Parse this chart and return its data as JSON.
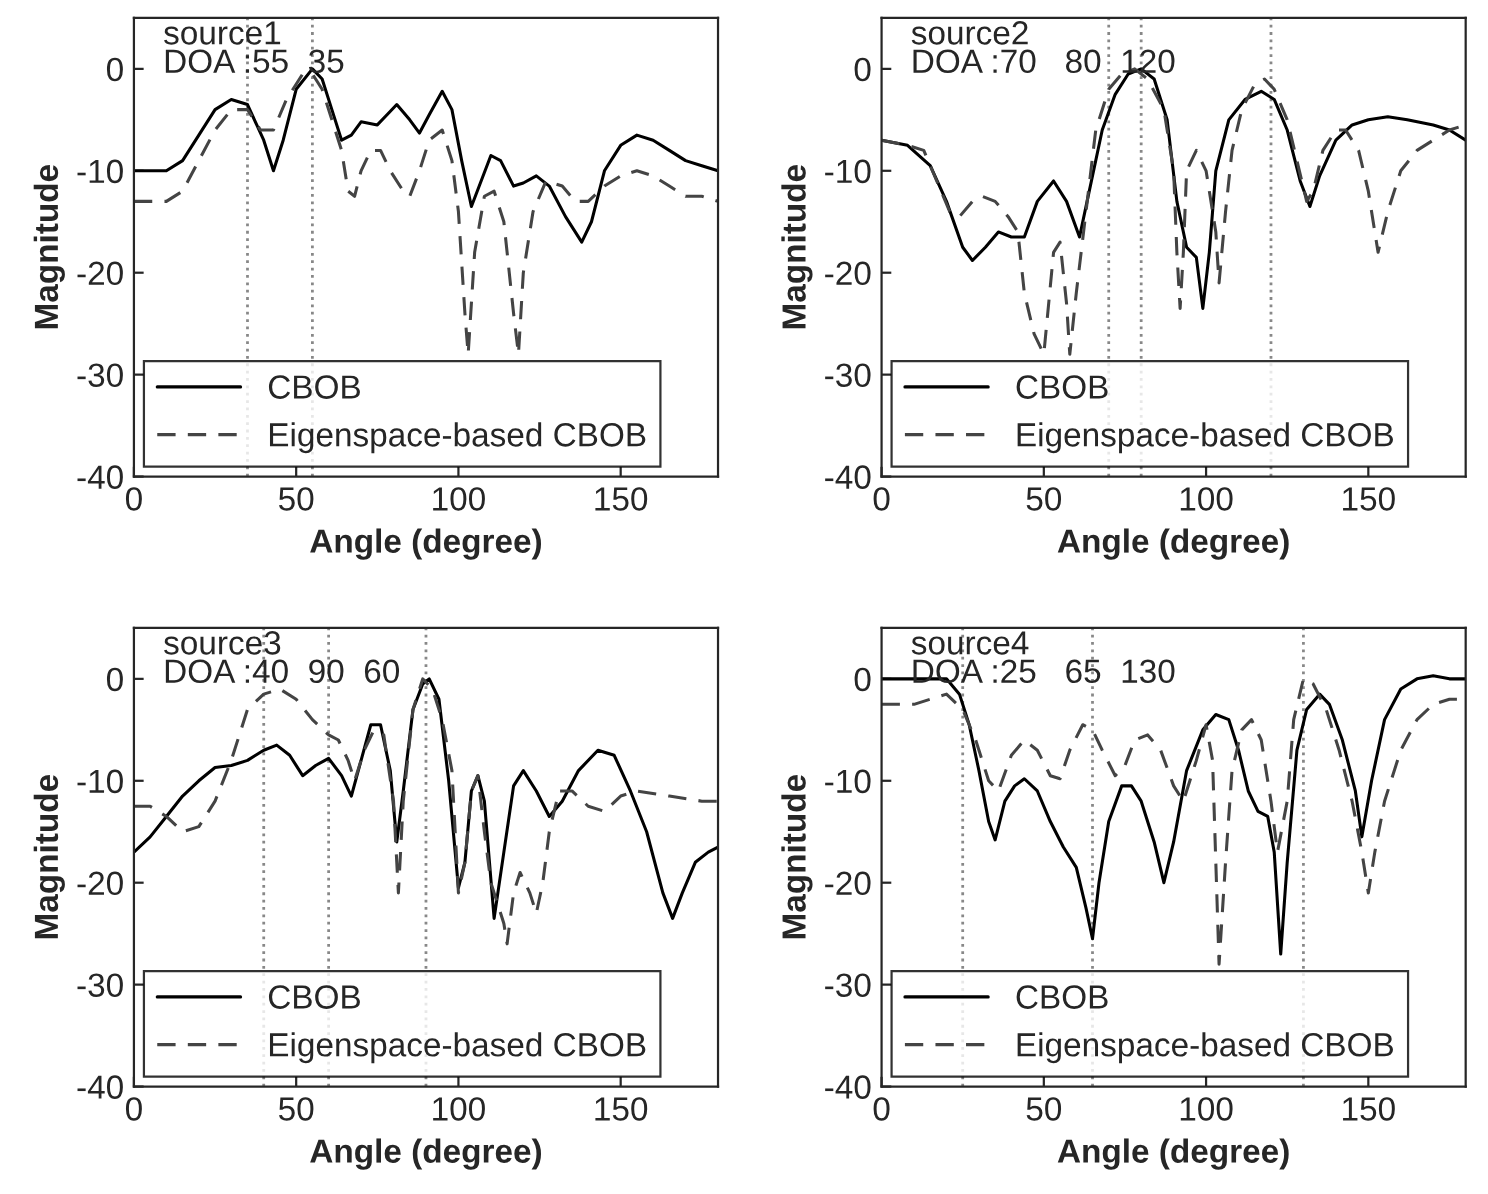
{
  "chart_data": [
    {
      "type": "line",
      "xlabel": "Angle (degree)",
      "ylabel": "Magnitude",
      "annotations": [
        "source1",
        "DOA :55  35"
      ],
      "xlim": [
        0,
        180
      ],
      "ylim": [
        -40,
        5
      ],
      "xticks": [
        0,
        50,
        100,
        150
      ],
      "yticks": [
        -40,
        -30,
        -20,
        -10,
        0
      ],
      "legend": "bottom left",
      "grid": false,
      "ref_lines": [
        {
          "axis": "x",
          "value": 35,
          "color": "#888888",
          "line_style": "dotted"
        },
        {
          "axis": "x",
          "value": 55,
          "color": "#888888",
          "line_style": "dotted"
        }
      ],
      "series": [
        {
          "name": "CBOB",
          "color": "#000000",
          "line_style": "solid",
          "x": [
            0,
            10,
            15,
            20,
            25,
            30,
            35,
            40,
            43,
            46,
            50,
            55,
            58,
            61,
            64,
            67,
            70,
            75,
            78,
            81,
            85,
            88,
            91,
            95,
            98,
            101,
            104,
            107,
            110,
            113,
            117,
            120,
            124,
            128,
            133,
            138,
            141,
            145,
            150,
            155,
            160,
            165,
            170,
            175,
            180
          ],
          "values": [
            -10,
            -10,
            -9,
            -6.5,
            -4,
            -3,
            -3.5,
            -7,
            -10,
            -7,
            -2,
            0,
            -1,
            -4,
            -7,
            -6.5,
            -5.2,
            -5.5,
            -4.5,
            -3.5,
            -5,
            -6.3,
            -4.5,
            -2.2,
            -4,
            -9,
            -13.5,
            -11,
            -8.5,
            -9,
            -11.5,
            -11.2,
            -10.5,
            -11.5,
            -14.5,
            -17,
            -15,
            -10,
            -7.5,
            -6.5,
            -7,
            -8,
            -9,
            -9.5,
            -10
          ]
        },
        {
          "name": "Eigenspace-based CBOB",
          "color": "#444444",
          "line_style": "dashed",
          "x": [
            0,
            10,
            15,
            20,
            25,
            30,
            35,
            39,
            43,
            47,
            52,
            55,
            58,
            61,
            64,
            66,
            68,
            70,
            73,
            76,
            79,
            83,
            85,
            88,
            91,
            95,
            98,
            100,
            102,
            103,
            105,
            108,
            111,
            114,
            117,
            118.5,
            120,
            123,
            127,
            132,
            136,
            140,
            145,
            150,
            155,
            160,
            165,
            170,
            175,
            180
          ],
          "values": [
            -13,
            -13,
            -12,
            -9,
            -6,
            -4,
            -4,
            -6,
            -6,
            -3,
            -0.5,
            -0.5,
            -2,
            -5,
            -8,
            -12,
            -12.5,
            -10,
            -8,
            -8,
            -10,
            -12,
            -12.5,
            -10,
            -7,
            -6,
            -9,
            -14,
            -24,
            -28,
            -18,
            -12.5,
            -12,
            -15,
            -24,
            -28,
            -20,
            -14,
            -11,
            -11.5,
            -13,
            -13,
            -11.5,
            -10.5,
            -10,
            -10.5,
            -11.5,
            -12.5,
            -12.5,
            -13
          ]
        }
      ]
    },
    {
      "type": "line",
      "xlabel": "Angle (degree)",
      "ylabel": "Magnitude",
      "annotations": [
        "source2",
        "DOA :70   80  120"
      ],
      "xlim": [
        0,
        180
      ],
      "ylim": [
        -40,
        5
      ],
      "xticks": [
        0,
        50,
        100,
        150
      ],
      "yticks": [
        -40,
        -30,
        -20,
        -10,
        0
      ],
      "legend": "bottom left",
      "grid": false,
      "ref_lines": [
        {
          "axis": "x",
          "value": 70,
          "color": "#888888",
          "line_style": "dotted"
        },
        {
          "axis": "x",
          "value": 80,
          "color": "#888888",
          "line_style": "dotted"
        },
        {
          "axis": "x",
          "value": 120,
          "color": "#888888",
          "line_style": "dotted"
        }
      ],
      "series": [
        {
          "name": "CBOB",
          "color": "#000000",
          "line_style": "solid",
          "x": [
            0,
            8,
            15,
            20,
            25,
            28,
            32,
            36,
            40,
            44,
            48,
            53,
            57,
            61,
            64,
            68,
            72,
            76,
            80,
            84,
            88,
            91,
            94,
            97,
            99,
            101,
            103,
            107,
            112,
            117,
            121,
            125,
            129,
            132,
            135,
            140,
            145,
            150,
            156,
            162,
            170,
            175,
            180
          ],
          "values": [
            -7,
            -7.5,
            -9.5,
            -13,
            -17.5,
            -18.8,
            -17.5,
            -16,
            -16.5,
            -16.5,
            -13,
            -11,
            -13,
            -16.5,
            -12,
            -6,
            -2.5,
            -0.5,
            0,
            -1,
            -5,
            -13,
            -17.5,
            -18.5,
            -23.5,
            -18,
            -10,
            -5,
            -3,
            -2.2,
            -3,
            -6,
            -11,
            -13.5,
            -10.5,
            -7,
            -5.5,
            -5,
            -4.7,
            -5,
            -5.5,
            -6,
            -7
          ]
        },
        {
          "name": "Eigenspace-based CBOB",
          "color": "#444444",
          "line_style": "dashed",
          "x": [
            0,
            8,
            13,
            17,
            21,
            24,
            28,
            31,
            35,
            39,
            42,
            44,
            47,
            50,
            53,
            55,
            57,
            58,
            60,
            63,
            66,
            70,
            74,
            78,
            82,
            87,
            90,
            91,
            92,
            93,
            94,
            97,
            100,
            103,
            104,
            106,
            108,
            111,
            115,
            118,
            121,
            125,
            128,
            131,
            133,
            136,
            140,
            143,
            147,
            150,
            153,
            156,
            160,
            165,
            170,
            175,
            180
          ],
          "values": [
            -7,
            -7.5,
            -8,
            -11,
            -14,
            -14.5,
            -13,
            -12.5,
            -13,
            -14.5,
            -16,
            -22,
            -26,
            -28,
            -18,
            -17,
            -23,
            -28,
            -22,
            -14,
            -6,
            -2,
            -0.5,
            0,
            -1,
            -4,
            -10,
            -18,
            -23.5,
            -18,
            -10,
            -8,
            -10,
            -16,
            -21,
            -14,
            -8,
            -4,
            -1.5,
            -1,
            -2,
            -5,
            -9,
            -13,
            -12,
            -8,
            -6,
            -6,
            -8,
            -12,
            -18,
            -14,
            -10,
            -8,
            -7,
            -6,
            -5.5
          ]
        }
      ]
    },
    {
      "type": "line",
      "xlabel": "Angle (degree)",
      "ylabel": "Magnitude",
      "annotations": [
        "source3",
        "DOA :40  90  60"
      ],
      "xlim": [
        0,
        180
      ],
      "ylim": [
        -40,
        5
      ],
      "xticks": [
        0,
        50,
        100,
        150
      ],
      "yticks": [
        -40,
        -30,
        -20,
        -10,
        0
      ],
      "legend": "bottom left",
      "grid": false,
      "ref_lines": [
        {
          "axis": "x",
          "value": 40,
          "color": "#888888",
          "line_style": "dotted"
        },
        {
          "axis": "x",
          "value": 60,
          "color": "#888888",
          "line_style": "dotted"
        },
        {
          "axis": "x",
          "value": 90,
          "color": "#888888",
          "line_style": "dotted"
        }
      ],
      "series": [
        {
          "name": "CBOB",
          "color": "#000000",
          "line_style": "solid",
          "x": [
            0,
            5,
            10,
            15,
            20,
            25,
            30,
            35,
            40,
            44,
            48,
            52,
            56,
            60,
            64,
            67,
            70,
            73,
            76,
            79,
            81,
            83,
            86,
            89,
            91,
            94,
            97,
            100,
            102,
            104,
            106,
            108,
            111,
            114,
            117,
            120,
            124,
            128,
            132,
            137,
            143,
            148,
            153,
            158,
            163,
            166,
            169,
            173,
            177,
            180
          ],
          "values": [
            -17,
            -15.5,
            -13.5,
            -11.5,
            -10,
            -8.7,
            -8.5,
            -8,
            -7,
            -6.5,
            -7.5,
            -9.5,
            -8.5,
            -7.8,
            -9.5,
            -11.5,
            -8,
            -4.5,
            -4.5,
            -9,
            -16,
            -11,
            -3,
            -0.5,
            0,
            -2,
            -10,
            -20.5,
            -18,
            -11,
            -9.5,
            -12,
            -23.5,
            -17,
            -10.5,
            -9,
            -11,
            -13.5,
            -12,
            -9,
            -7,
            -7.5,
            -11,
            -15,
            -21,
            -23.5,
            -21,
            -18,
            -17,
            -16.5
          ]
        },
        {
          "name": "Eigenspace-based CBOB",
          "color": "#444444",
          "line_style": "dashed",
          "x": [
            0,
            5,
            10,
            15,
            20,
            25,
            30,
            35,
            40,
            45,
            50,
            55,
            60,
            63,
            66,
            68,
            71,
            74,
            77,
            80,
            81.5,
            83,
            86,
            89,
            92,
            95,
            98,
            100,
            102,
            104,
            106,
            108,
            110,
            112,
            114,
            115,
            117,
            119,
            122,
            124,
            126,
            128,
            131,
            135,
            140,
            145,
            150,
            155,
            165,
            175,
            180
          ],
          "values": [
            -12.5,
            -12.5,
            -13.5,
            -15,
            -14.5,
            -12,
            -8,
            -3,
            -1.5,
            -1,
            -2,
            -4,
            -5.5,
            -6,
            -8,
            -10,
            -7,
            -5,
            -5.5,
            -12,
            -21,
            -12,
            -3,
            0,
            -1,
            -4,
            -9,
            -21,
            -18,
            -11,
            -9.5,
            -15,
            -20,
            -22,
            -24,
            -26,
            -21,
            -19,
            -21,
            -23,
            -20,
            -15,
            -11,
            -11,
            -12.5,
            -13,
            -11.5,
            -11,
            -11.5,
            -12,
            -12
          ]
        }
      ]
    },
    {
      "type": "line",
      "xlabel": "Angle (degree)",
      "ylabel": "Magnitude",
      "annotations": [
        "source4",
        "DOA :25   65  130"
      ],
      "xlim": [
        0,
        180
      ],
      "ylim": [
        -40,
        5
      ],
      "xticks": [
        0,
        50,
        100,
        150
      ],
      "yticks": [
        -40,
        -30,
        -20,
        -10,
        0
      ],
      "legend": "bottom left",
      "grid": false,
      "ref_lines": [
        {
          "axis": "x",
          "value": 25,
          "color": "#888888",
          "line_style": "dotted"
        },
        {
          "axis": "x",
          "value": 65,
          "color": "#888888",
          "line_style": "dotted"
        },
        {
          "axis": "x",
          "value": 130,
          "color": "#888888",
          "line_style": "dotted"
        }
      ],
      "series": [
        {
          "name": "CBOB",
          "color": "#000000",
          "line_style": "solid",
          "x": [
            0,
            20,
            24,
            27,
            30,
            33,
            35,
            38,
            41,
            44,
            48,
            52,
            56,
            60,
            63,
            65,
            67,
            70,
            74,
            77,
            80,
            84,
            87,
            90,
            94,
            99,
            103,
            107,
            110,
            113,
            116,
            119,
            121,
            123,
            125,
            128,
            131,
            135,
            138,
            142,
            146,
            148,
            151,
            155,
            160,
            165,
            170,
            175,
            180
          ],
          "values": [
            0,
            0,
            -1.5,
            -4.5,
            -9,
            -14,
            -15.8,
            -12,
            -10.5,
            -9.8,
            -11,
            -14,
            -16.5,
            -18.5,
            -22.5,
            -25.5,
            -20,
            -14,
            -10.5,
            -10.5,
            -12,
            -16,
            -20,
            -16,
            -9,
            -5,
            -3.5,
            -4,
            -7,
            -11,
            -13,
            -13.5,
            -17,
            -27,
            -18,
            -7,
            -3,
            -1.5,
            -2.5,
            -6,
            -11,
            -15.5,
            -10,
            -4,
            -1,
            0,
            0.3,
            0,
            0
          ]
        },
        {
          "name": "Eigenspace-based CBOB",
          "color": "#444444",
          "line_style": "dashed",
          "x": [
            0,
            10,
            20,
            25,
            29,
            33,
            36,
            40,
            44,
            48,
            52,
            55,
            58,
            62,
            65,
            68,
            72,
            75,
            78,
            82,
            86,
            90,
            93,
            97,
            100,
            102,
            103,
            104,
            106,
            108,
            111,
            114,
            117,
            120,
            122,
            125,
            127,
            130,
            133,
            137,
            141,
            145,
            148,
            150,
            152,
            155,
            160,
            165,
            170,
            175,
            180
          ],
          "values": [
            -2.5,
            -2.5,
            -1.5,
            -3,
            -6,
            -10,
            -11,
            -7.5,
            -6,
            -7,
            -9.5,
            -9.8,
            -7,
            -4.5,
            -5,
            -7,
            -9.5,
            -8.5,
            -6,
            -5.5,
            -7,
            -10.5,
            -12,
            -8,
            -4.5,
            -8,
            -18,
            -28,
            -18,
            -9,
            -5,
            -4,
            -6,
            -12,
            -17,
            -12,
            -4,
            0,
            -0.5,
            -3,
            -7,
            -12,
            -17,
            -21,
            -17,
            -12,
            -7,
            -4,
            -2.5,
            -2,
            -2
          ]
        }
      ]
    }
  ]
}
